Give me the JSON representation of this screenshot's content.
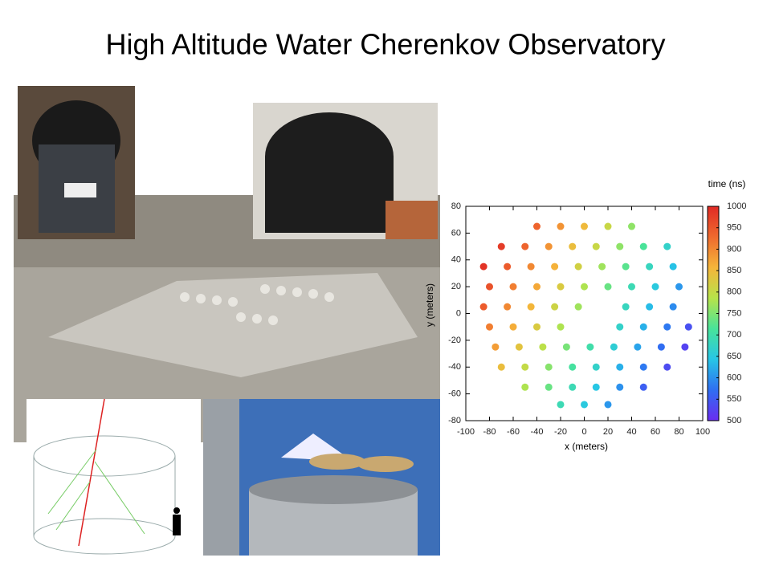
{
  "title": "High Altitude Water Cherenkov Observatory",
  "chart_data": {
    "type": "scatter",
    "xlabel": "x (meters)",
    "ylabel": "y (meters)",
    "colorbar_label": "time (ns)",
    "xlim": [
      -100,
      100
    ],
    "ylim": [
      -80,
      80
    ],
    "xticks": [
      -100,
      -80,
      -60,
      -40,
      -20,
      0,
      20,
      40,
      60,
      80,
      100
    ],
    "yticks": [
      -80,
      -60,
      -40,
      -20,
      0,
      20,
      40,
      60,
      80
    ],
    "clim": [
      500,
      1000
    ],
    "cticks": [
      500,
      550,
      600,
      650,
      700,
      750,
      800,
      850,
      900,
      950,
      1000
    ],
    "colormap": [
      "#6a2cf0",
      "#2f6ef2",
      "#27c6e6",
      "#48e39a",
      "#b7e34a",
      "#f5b53a",
      "#ef6a2e",
      "#e02a25"
    ],
    "points": {
      "x": [
        -40,
        -20,
        0,
        20,
        40,
        -70,
        -50,
        -30,
        -10,
        10,
        30,
        50,
        70,
        -85,
        -65,
        -45,
        -25,
        -5,
        15,
        35,
        55,
        75,
        -80,
        -60,
        -40,
        -20,
        0,
        20,
        40,
        60,
        80,
        -85,
        -65,
        -45,
        -25,
        -5,
        35,
        55,
        75,
        -80,
        -60,
        -40,
        -20,
        30,
        50,
        70,
        88,
        -75,
        -55,
        -35,
        -15,
        5,
        25,
        45,
        65,
        85,
        -70,
        -50,
        -30,
        -10,
        10,
        30,
        50,
        70,
        -50,
        -30,
        -10,
        10,
        30,
        50,
        -20,
        0,
        20
      ],
      "y": [
        65,
        65,
        65,
        65,
        65,
        50,
        50,
        50,
        50,
        50,
        50,
        50,
        50,
        35,
        35,
        35,
        35,
        35,
        35,
        35,
        35,
        35,
        20,
        20,
        20,
        20,
        20,
        20,
        20,
        20,
        20,
        5,
        5,
        5,
        5,
        5,
        5,
        5,
        5,
        -10,
        -10,
        -10,
        -10,
        -10,
        -10,
        -10,
        -10,
        -25,
        -25,
        -25,
        -25,
        -25,
        -25,
        -25,
        -25,
        -25,
        -40,
        -40,
        -40,
        -40,
        -40,
        -40,
        -40,
        -40,
        -55,
        -55,
        -55,
        -55,
        -55,
        -55,
        -68,
        -68,
        -68
      ],
      "time": [
        935,
        890,
        850,
        805,
        760,
        980,
        935,
        890,
        845,
        805,
        760,
        715,
        670,
        990,
        945,
        900,
        860,
        815,
        770,
        725,
        680,
        640,
        955,
        910,
        870,
        825,
        780,
        735,
        690,
        650,
        605,
        945,
        900,
        855,
        810,
        770,
        680,
        635,
        595,
        910,
        865,
        825,
        780,
        670,
        625,
        580,
        540,
        880,
        835,
        790,
        745,
        700,
        660,
        615,
        570,
        525,
        845,
        800,
        755,
        710,
        670,
        625,
        580,
        535,
        780,
        735,
        690,
        645,
        600,
        555,
        690,
        650,
        605
      ]
    }
  }
}
